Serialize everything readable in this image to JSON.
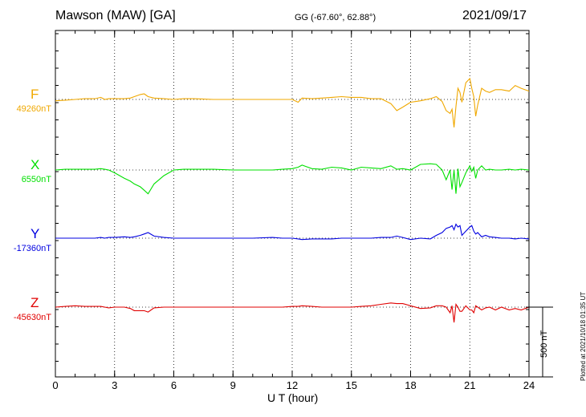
{
  "header": {
    "title": "Mawson (MAW)  [GA]",
    "coords": "GG (-67.60°,  62.88°)",
    "date": "2021/09/17"
  },
  "footer": {
    "plotted": "Plotted at 2021/10/18 01:35 UT",
    "scale_label": "500 nT"
  },
  "chart_data": {
    "type": "line",
    "title": "Mawson (MAW)  [GA]",
    "xlabel": "U T (hour)",
    "ylabel": "",
    "x_ticks": [
      "0",
      "3",
      "6",
      "9",
      "12",
      "15",
      "18",
      "21",
      "24"
    ],
    "xlim": [
      0,
      24
    ],
    "grid": "dotted vertical every 3 h",
    "scale_bar_nT": 500,
    "x": [
      0,
      0.5,
      1,
      1.5,
      2,
      2.3,
      2.5,
      2.7,
      3,
      3.5,
      3.8,
      4,
      4.3,
      4.5,
      4.7,
      5,
      5.5,
      6,
      6.5,
      7,
      8,
      9,
      10,
      11,
      11.5,
      12,
      12.3,
      12.5,
      13,
      13.5,
      14,
      14.5,
      15,
      15.5,
      16,
      16.5,
      17,
      17.3,
      17.6,
      18,
      18.5,
      19,
      19.3,
      19.6,
      19.8,
      20,
      20.1,
      20.2,
      20.3,
      20.4,
      20.5,
      20.6,
      20.8,
      21,
      21.1,
      21.2,
      21.3,
      21.4,
      21.6,
      21.8,
      22,
      22.3,
      22.6,
      23,
      23.3,
      23.6,
      24
    ],
    "series": [
      {
        "name": "F",
        "baseline": "49260nT",
        "color": "#f0a800",
        "values": [
          10,
          5,
          0,
          -5,
          -5,
          -15,
          0,
          -5,
          -5,
          -5,
          -10,
          -20,
          -35,
          -40,
          -20,
          -10,
          -5,
          0,
          -5,
          -5,
          0,
          0,
          0,
          0,
          0,
          0,
          20,
          -10,
          -5,
          -10,
          -15,
          -20,
          -15,
          -15,
          -5,
          -5,
          30,
          80,
          55,
          20,
          10,
          -5,
          -20,
          15,
          80,
          100,
          70,
          200,
          50,
          -80,
          -50,
          20,
          -120,
          -150,
          -80,
          -20,
          120,
          40,
          -80,
          -60,
          -50,
          -70,
          -70,
          -60,
          -100,
          -80,
          -60
        ]
      },
      {
        "name": "X",
        "baseline": "6550nT",
        "color": "#00e000",
        "values": [
          0,
          -5,
          -5,
          -5,
          -5,
          -10,
          -5,
          0,
          20,
          60,
          80,
          100,
          120,
          145,
          170,
          100,
          40,
          0,
          -5,
          -5,
          -5,
          0,
          0,
          0,
          -5,
          -10,
          -20,
          -35,
          -10,
          -5,
          -20,
          -15,
          0,
          -20,
          -15,
          -10,
          -30,
          -5,
          -10,
          0,
          -40,
          -45,
          -40,
          0,
          70,
          0,
          140,
          0,
          170,
          -10,
          120,
          90,
          20,
          -30,
          10,
          -20,
          60,
          0,
          -30,
          0,
          -5,
          0,
          0,
          -5,
          0,
          -5,
          0
        ]
      },
      {
        "name": "Y",
        "baseline": "-17360nT",
        "color": "#0000e0",
        "values": [
          0,
          0,
          0,
          0,
          0,
          -5,
          0,
          -5,
          -5,
          -10,
          -5,
          -10,
          -20,
          -30,
          -40,
          -15,
          -5,
          0,
          0,
          0,
          0,
          0,
          0,
          -5,
          0,
          0,
          5,
          10,
          5,
          5,
          5,
          0,
          0,
          0,
          0,
          -5,
          -5,
          -15,
          -5,
          10,
          0,
          5,
          -20,
          -40,
          -70,
          -80,
          -90,
          -60,
          -100,
          -80,
          -90,
          -20,
          -50,
          -80,
          -90,
          -50,
          -30,
          -40,
          -10,
          -20,
          -10,
          -5,
          0,
          0,
          5,
          0,
          5
        ]
      },
      {
        "name": "Z",
        "baseline": "-45630nT",
        "color": "#e00000",
        "values": [
          0,
          -5,
          -10,
          -5,
          -5,
          -5,
          0,
          5,
          0,
          0,
          10,
          25,
          25,
          25,
          35,
          5,
          0,
          0,
          0,
          0,
          0,
          0,
          0,
          0,
          0,
          -5,
          -5,
          -10,
          -5,
          0,
          0,
          0,
          0,
          -5,
          -10,
          -20,
          -30,
          -25,
          -25,
          -10,
          10,
          5,
          -10,
          -10,
          0,
          40,
          -10,
          110,
          -20,
          0,
          30,
          30,
          -10,
          20,
          20,
          40,
          -10,
          0,
          20,
          5,
          0,
          20,
          0,
          20,
          10,
          20,
          0
        ]
      }
    ]
  }
}
